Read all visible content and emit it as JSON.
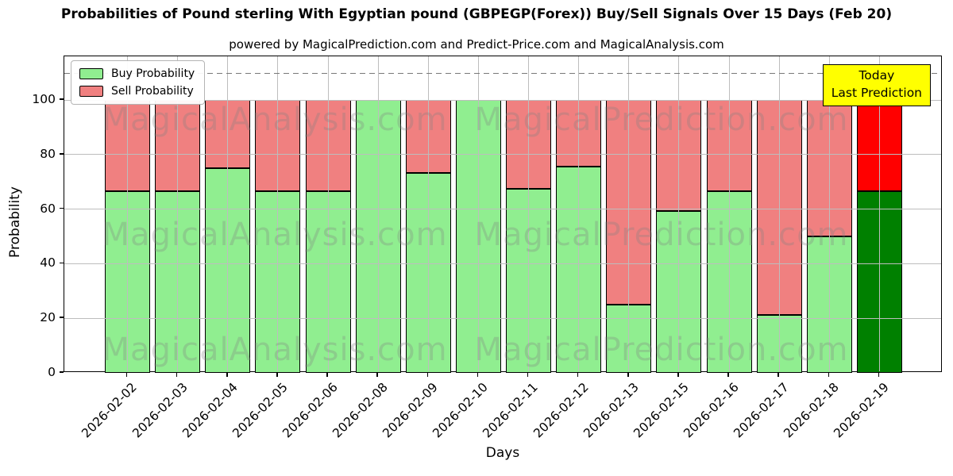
{
  "chart": {
    "title": "Probabilities of Pound sterling With Egyptian pound (GBPEGP(Forex)) Buy/Sell Signals Over 15 Days (Feb 20)",
    "subtitle": "powered by MagicalPrediction.com and Predict-Price.com and MagicalAnalysis.com",
    "xlabel": "Days",
    "ylabel": "Probability"
  },
  "legend": {
    "items": [
      {
        "label": "Buy Probability",
        "color": "#90EE90"
      },
      {
        "label": "Sell Probability",
        "color": "#F08080"
      }
    ]
  },
  "annotation": {
    "line1": "Today",
    "line2": "Last Prediction",
    "bg_color": "#FFFF00"
  },
  "watermarks": {
    "left": "MagicalAnalysis.com",
    "right": "MagicalPrediction.com"
  },
  "chart_data": {
    "type": "bar",
    "stacked": true,
    "title": "Probabilities of Pound sterling With Egyptian pound (GBPEGP(Forex)) Buy/Sell Signals Over 15 Days (Feb 20)",
    "xlabel": "Days",
    "ylabel": "Probability",
    "categories": [
      "2026-02-02",
      "2026-02-03",
      "2026-02-04",
      "2026-02-05",
      "2026-02-06",
      "2026-02-08",
      "2026-02-09",
      "2026-02-10",
      "2026-02-11",
      "2026-02-12",
      "2026-02-13",
      "2026-02-15",
      "2026-02-16",
      "2026-02-17",
      "2026-02-18",
      "2026-02-19"
    ],
    "series": [
      {
        "name": "Buy Probability",
        "color": "#90EE90",
        "values": [
          66.7,
          66.7,
          75.0,
          66.7,
          66.7,
          100.0,
          73.3,
          100.0,
          67.5,
          75.7,
          25.0,
          59.3,
          66.7,
          21.2,
          50.0,
          66.7
        ]
      },
      {
        "name": "Sell Probability",
        "color": "#F08080",
        "values": [
          33.3,
          33.3,
          25.0,
          33.3,
          33.3,
          0.0,
          26.7,
          0.0,
          32.5,
          24.3,
          75.0,
          40.7,
          33.3,
          78.8,
          50.0,
          33.3
        ]
      }
    ],
    "today_bar": {
      "category": "2026-02-19",
      "buy_color": "#008000",
      "sell_color": "#FF0000"
    },
    "ylim": [
      0,
      116
    ],
    "yticks": [
      0,
      20,
      40,
      60,
      80,
      100
    ],
    "dashed_line_y": 110,
    "grid": true,
    "legend_position": "upper left"
  }
}
